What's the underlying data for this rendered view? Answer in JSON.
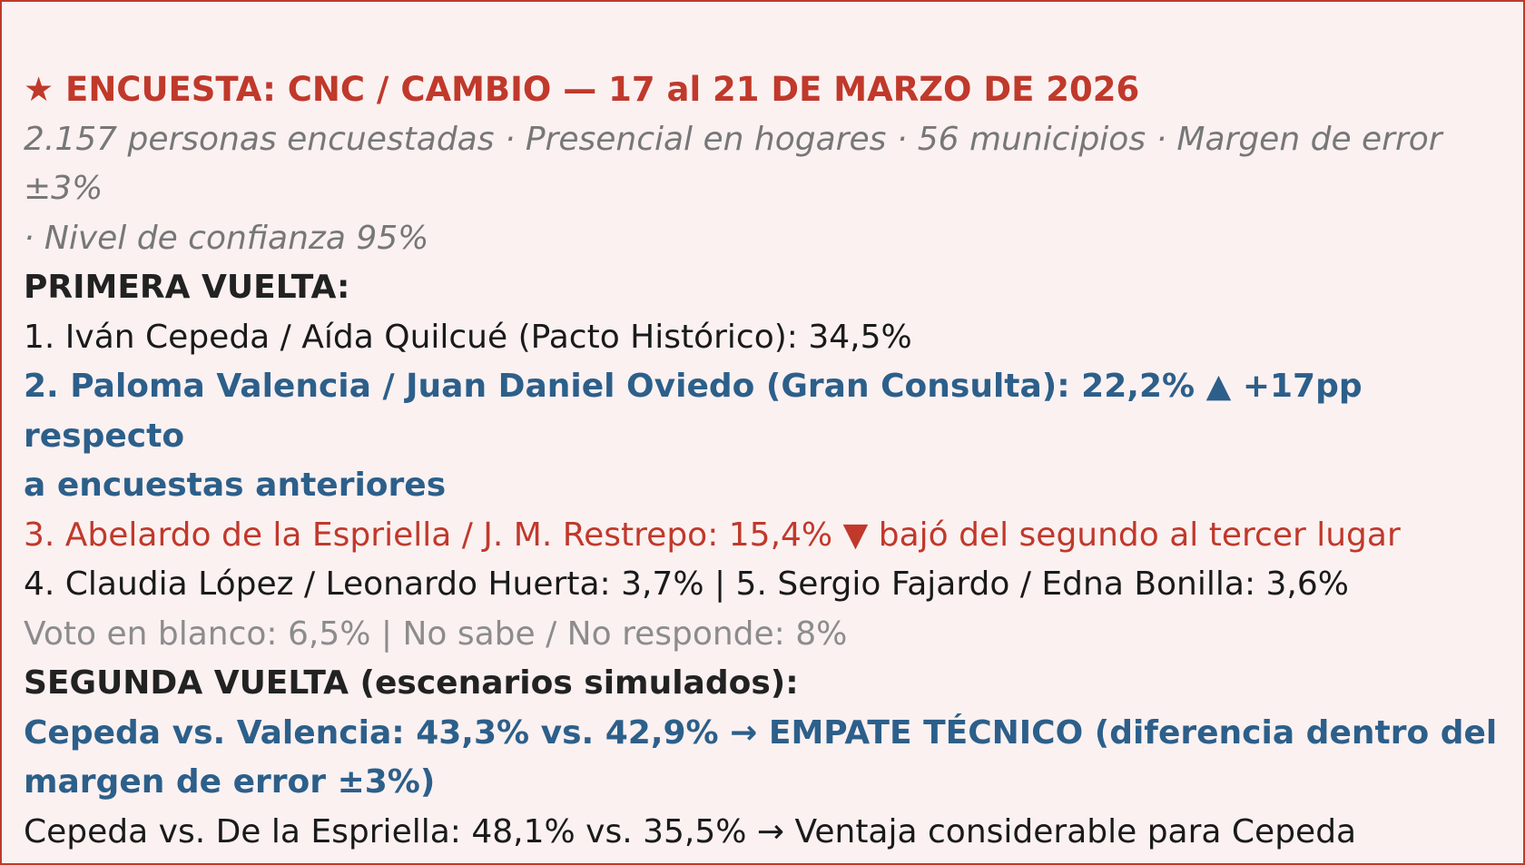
{
  "poll": {
    "title": "★ ENCUESTA: CNC / CAMBIO — 17 al 21 DE MARZO DE 2026",
    "meta_line1": "2.157 personas encuestadas · Presencial en hogares · 56 municipios · Margen de error ±3%",
    "meta_line2": "· Nivel de confianza 95%"
  },
  "first_round": {
    "heading": "PRIMERA VUELTA:",
    "item1": "1. Iván Cepeda / Aída Quilcué (Pacto Histórico): 34,5%",
    "item2_line1": "2. Paloma Valencia / Juan Daniel Oviedo (Gran Consulta): 22,2% ▲ +17pp respecto",
    "item2_line2": "a encuestas anteriores",
    "item3": "3. Abelardo de la Espriella / J. M. Restrepo: 15,4% ▼ bajó del segundo al tercer lugar",
    "item4_5": "4. Claudia López / Leonardo Huerta: 3,7% | 5. Sergio Fajardo / Edna Bonilla: 3,6%",
    "other": "Voto en blanco: 6,5% | No sabe / No responde: 8%"
  },
  "second_round": {
    "heading": "SEGUNDA VUELTA (escenarios simulados):",
    "scenario1_line1": "Cepeda vs. Valencia: 43,3% vs. 42,9% → EMPATE TÉCNICO (diferencia dentro del",
    "scenario1_line2": "margen de error ±3%)",
    "scenario2": "Cepeda vs. De la Espriella: 48,1% vs. 35,5% → Ventaja considerable para Cepeda"
  },
  "colors": {
    "accent_red": "#c0392b",
    "accent_blue": "#2c5f8a",
    "background": "#fbf1f1"
  }
}
